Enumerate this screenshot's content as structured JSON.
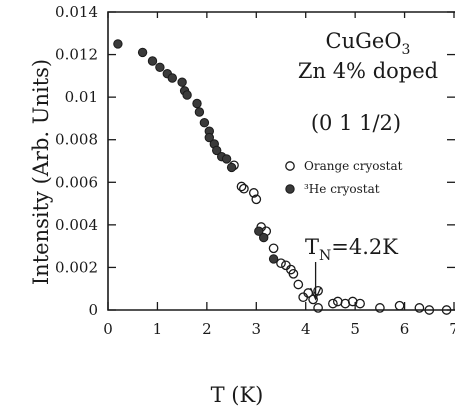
{
  "chart_data": {
    "type": "scatter",
    "title": "",
    "xlabel": "T (K)",
    "ylabel": "Intensity (Arb. Units)",
    "xlim": [
      0,
      7
    ],
    "ylim": [
      0,
      0.014
    ],
    "xticks": [
      "0",
      "1",
      "2",
      "3",
      "4",
      "5",
      "6",
      "7"
    ],
    "yticks": [
      "0",
      "0.002",
      "0.004",
      "0.006",
      "0.008",
      "0.01",
      "0.012",
      "0.014"
    ],
    "grid": false,
    "legend_position": "right",
    "annotations": {
      "compound_base": "CuGeO",
      "compound_sub": "3",
      "doping": "Zn 4% doped",
      "reflection": "(0  1  1/2)",
      "transition_prefix": "T",
      "transition_sub": "N",
      "transition_value": "=4.2K",
      "transition_x": 4.2
    },
    "series": [
      {
        "name": "Orange cryostat",
        "marker": "open-circle",
        "color": "#1a1a1a",
        "x": [
          2.55,
          2.7,
          2.75,
          2.95,
          3.0,
          3.1,
          3.2,
          3.35,
          3.5,
          3.6,
          3.7,
          3.75,
          3.85,
          3.95,
          4.05,
          4.15,
          4.25,
          4.25,
          4.55,
          4.65,
          4.8,
          4.95,
          5.1,
          5.5,
          5.9,
          6.3,
          6.5,
          6.85
        ],
        "y": [
          0.0068,
          0.0058,
          0.0057,
          0.0055,
          0.0052,
          0.0039,
          0.0037,
          0.0029,
          0.0022,
          0.0021,
          0.0019,
          0.0017,
          0.0012,
          0.0006,
          0.0008,
          0.0005,
          0.0009,
          0.0001,
          0.0003,
          0.0004,
          0.0003,
          0.0004,
          0.0003,
          0.0001,
          0.0002,
          0.0001,
          0.0,
          0.0
        ]
      },
      {
        "name": "³He cryostat",
        "marker": "filled-circle",
        "color": "#1a1a1a",
        "x": [
          0.2,
          0.7,
          0.9,
          1.05,
          1.2,
          1.3,
          1.5,
          1.55,
          1.6,
          1.8,
          1.85,
          1.95,
          2.05,
          2.05,
          2.15,
          2.2,
          2.3,
          2.4,
          2.5,
          3.05,
          3.15,
          3.35
        ],
        "y": [
          0.0125,
          0.0121,
          0.0117,
          0.0114,
          0.0111,
          0.0109,
          0.0107,
          0.0103,
          0.0101,
          0.0097,
          0.0093,
          0.0088,
          0.0084,
          0.0081,
          0.0078,
          0.0075,
          0.0072,
          0.0071,
          0.0067,
          0.0037,
          0.0034,
          0.0024
        ]
      }
    ]
  }
}
